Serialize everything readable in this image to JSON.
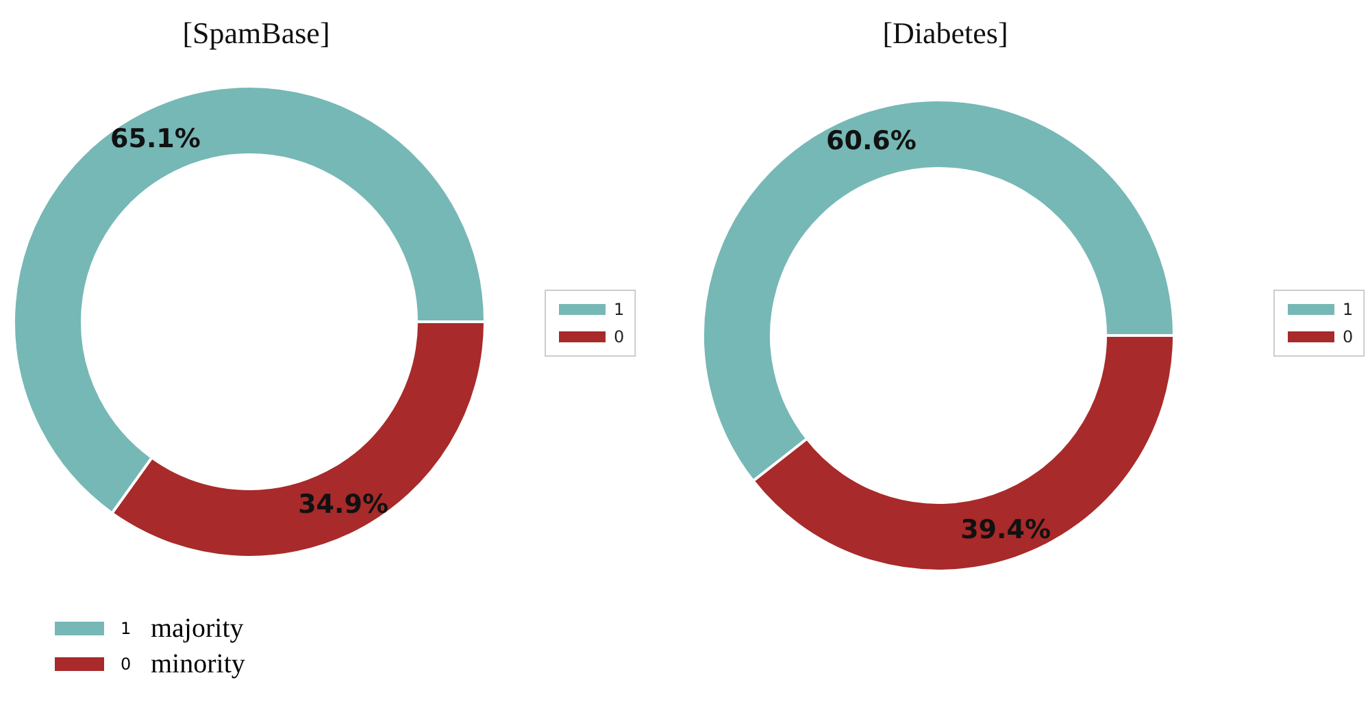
{
  "chart_data": [
    {
      "type": "donut",
      "title": "[SpamBase]",
      "categories": [
        "1",
        "0"
      ],
      "values": [
        65.1,
        34.9
      ],
      "value_labels": [
        "65.1%",
        "34.9%"
      ],
      "colors": [
        "#76b8b6",
        "#a82a2a"
      ],
      "legend": "right"
    },
    {
      "type": "donut",
      "title": "[Diabetes]",
      "categories": [
        "1",
        "0"
      ],
      "values": [
        60.6,
        39.4
      ],
      "value_labels": [
        "60.6%",
        "39.4%"
      ],
      "colors": [
        "#76b8b6",
        "#a82a2a"
      ],
      "legend": "right"
    },
    {
      "type": "other",
      "annotations": [
        "1",
        "majority",
        "0",
        "minority"
      ]
    }
  ]
}
